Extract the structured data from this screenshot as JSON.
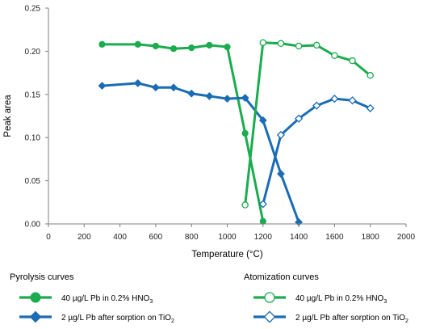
{
  "chart_data": {
    "type": "line",
    "xlabel": "Temperature (°C)",
    "ylabel": "Peak area",
    "xlim": [
      0,
      2000
    ],
    "ylim": [
      0,
      0.25
    ],
    "x_ticks": [
      "0",
      "200",
      "400",
      "600",
      "800",
      "1000",
      "1200",
      "1400",
      "1600",
      "1800",
      "2000"
    ],
    "y_ticks": [
      "0.00",
      "0.05",
      "0.10",
      "0.15",
      "0.20",
      "0.25"
    ],
    "grid": false,
    "legend": {
      "groups": [
        {
          "title": "Pyrolysis curves",
          "entries": [
            0,
            1
          ]
        },
        {
          "title": "Atomization curves",
          "entries": [
            2,
            3
          ]
        }
      ]
    },
    "series": [
      {
        "name": "40 µg/L Pb in 0.2% HNO3",
        "name_parts": [
          "40 µg/L Pb in 0.2% HNO",
          "3"
        ],
        "group": "Pyrolysis curves",
        "color": "#1aac4e",
        "marker": "circle",
        "filled": true,
        "x": [
          300,
          500,
          600,
          700,
          800,
          900,
          1000,
          1100,
          1200
        ],
        "y": [
          0.208,
          0.208,
          0.206,
          0.203,
          0.204,
          0.207,
          0.205,
          0.105,
          0.003
        ]
      },
      {
        "name": "2 µg/L Pb after sorption on TiO2",
        "name_parts": [
          "2 µg/L Pb after sorption on TiO",
          "2"
        ],
        "group": "Pyrolysis curves",
        "color": "#1a6cb5",
        "marker": "diamond",
        "filled": true,
        "x": [
          300,
          500,
          600,
          700,
          800,
          900,
          1000,
          1100,
          1200,
          1300,
          1400
        ],
        "y": [
          0.16,
          0.163,
          0.158,
          0.158,
          0.151,
          0.148,
          0.145,
          0.146,
          0.12,
          0.058,
          0.002
        ]
      },
      {
        "name": "40 µg/L Pb in 0.2% HNO3",
        "name_parts": [
          "40 µg/L Pb in 0.2% HNO",
          "3"
        ],
        "group": "Atomization curves",
        "color": "#1aac4e",
        "marker": "circle",
        "filled": false,
        "x": [
          1100,
          1200,
          1300,
          1400,
          1500,
          1600,
          1700,
          1800
        ],
        "y": [
          0.022,
          0.21,
          0.209,
          0.206,
          0.207,
          0.195,
          0.189,
          0.172
        ]
      },
      {
        "name": "2 µg/L Pb after sorption on TiO2",
        "name_parts": [
          "2 µg/L Pb after sorption on TiO",
          "2"
        ],
        "group": "Atomization curves",
        "color": "#1a6cb5",
        "marker": "diamond",
        "filled": false,
        "x": [
          1200,
          1300,
          1400,
          1500,
          1600,
          1700,
          1800
        ],
        "y": [
          0.023,
          0.103,
          0.122,
          0.137,
          0.145,
          0.143,
          0.134
        ]
      }
    ]
  }
}
